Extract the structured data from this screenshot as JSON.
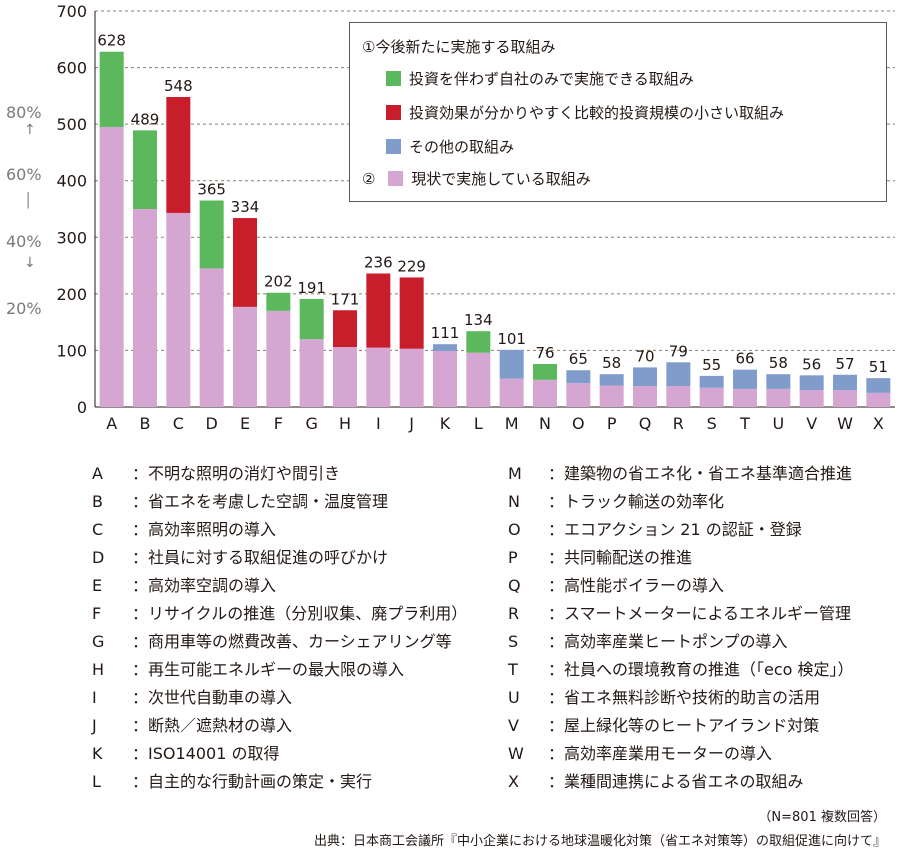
{
  "chart_data": {
    "type": "bar",
    "stacked": true,
    "categories": [
      "A",
      "B",
      "C",
      "D",
      "E",
      "F",
      "G",
      "H",
      "I",
      "J",
      "K",
      "L",
      "M",
      "N",
      "O",
      "P",
      "Q",
      "R",
      "S",
      "T",
      "U",
      "V",
      "W",
      "X"
    ],
    "totals": [
      628,
      489,
      548,
      365,
      334,
      202,
      191,
      171,
      236,
      229,
      111,
      134,
      101,
      76,
      65,
      58,
      70,
      79,
      55,
      66,
      58,
      56,
      57,
      51
    ],
    "series": [
      {
        "name": "現状で実施している取組み",
        "color": "#d6a6d3",
        "values": [
          495,
          350,
          343,
          245,
          177,
          170,
          120,
          106,
          105,
          103,
          99,
          96,
          50,
          48,
          42,
          38,
          37,
          37,
          34,
          32,
          32,
          30,
          30,
          25
        ]
      },
      {
        "name": "投資を伴わず自社のみで実施できる取組み",
        "color": "#5cb85c",
        "values": [
          133,
          139,
          0,
          120,
          0,
          32,
          71,
          0,
          0,
          0,
          0,
          38,
          0,
          28,
          0,
          0,
          0,
          0,
          0,
          0,
          0,
          0,
          0,
          0
        ]
      },
      {
        "name": "投資効果が分かりやすく比較的投資規模の小さい取組み",
        "color": "#c81e2c",
        "values": [
          0,
          0,
          205,
          0,
          157,
          0,
          0,
          65,
          131,
          126,
          0,
          0,
          0,
          0,
          0,
          0,
          0,
          0,
          0,
          0,
          0,
          0,
          0,
          0
        ]
      },
      {
        "name": "その他の取組み",
        "color": "#7f9ccb",
        "values": [
          0,
          0,
          0,
          0,
          0,
          0,
          0,
          0,
          0,
          0,
          12,
          0,
          51,
          0,
          23,
          20,
          33,
          42,
          21,
          34,
          26,
          26,
          27,
          26
        ]
      }
    ],
    "ylim": [
      0,
      700
    ],
    "yticks": [
      0,
      100,
      200,
      300,
      400,
      500,
      600,
      700
    ],
    "grid": true,
    "pct_axis": [
      "80%",
      "60%",
      "40%",
      "20%"
    ],
    "legend": {
      "group1": "①今後新たに実施する取組み",
      "group2_prefix": "②",
      "placement": "top-right"
    }
  },
  "definitions_left": [
    {
      "key": "A",
      "text": "：不明な照明の消灯や間引き"
    },
    {
      "key": "B",
      "text": "：省エネを考慮した空調・温度管理"
    },
    {
      "key": "C",
      "text": "：高効率照明の導入"
    },
    {
      "key": "D",
      "text": "：社員に対する取組促進の呼びかけ"
    },
    {
      "key": "E",
      "text": "：高効率空調の導入"
    },
    {
      "key": "F",
      "text": "：リサイクルの推進（分別収集、廃プラ利用）"
    },
    {
      "key": "G",
      "text": "：商用車等の燃費改善、カーシェアリング等"
    },
    {
      "key": "H",
      "text": "：再生可能エネルギーの最大限の導入"
    },
    {
      "key": "I",
      "text": "：次世代自動車の導入"
    },
    {
      "key": "J",
      "text": "：断熱／遮熱材の導入"
    },
    {
      "key": "K",
      "text": "：ISO14001 の取得"
    },
    {
      "key": "L",
      "text": "：自主的な行動計画の策定・実行"
    }
  ],
  "definitions_right": [
    {
      "key": "M",
      "text": "：建築物の省エネ化・省エネ基準適合推進"
    },
    {
      "key": "N",
      "text": "：トラック輸送の効率化"
    },
    {
      "key": "O",
      "text": "：エコアクション 21 の認証・登録"
    },
    {
      "key": "P",
      "text": "：共同輸配送の推進"
    },
    {
      "key": "Q",
      "text": "：高性能ボイラーの導入"
    },
    {
      "key": "R",
      "text": "：スマートメーターによるエネルギー管理"
    },
    {
      "key": "S",
      "text": "：高効率産業ヒートポンプの導入"
    },
    {
      "key": "T",
      "text": "：社員への環境教育の推進（「eco 検定」）"
    },
    {
      "key": "U",
      "text": "：省エネ無料診断や技術的助言の活用"
    },
    {
      "key": "V",
      "text": "：屋上緑化等のヒートアイランド対策"
    },
    {
      "key": "W",
      "text": "：高効率産業用モーターの導入"
    },
    {
      "key": "X",
      "text": "：業種間連携による省エネの取組み"
    }
  ],
  "note": "（N=801 複数回答）",
  "source": "出典：日本商工会議所『中小企業における地球温暖化対策（省エネ対策等）の取組促進に向けて』"
}
